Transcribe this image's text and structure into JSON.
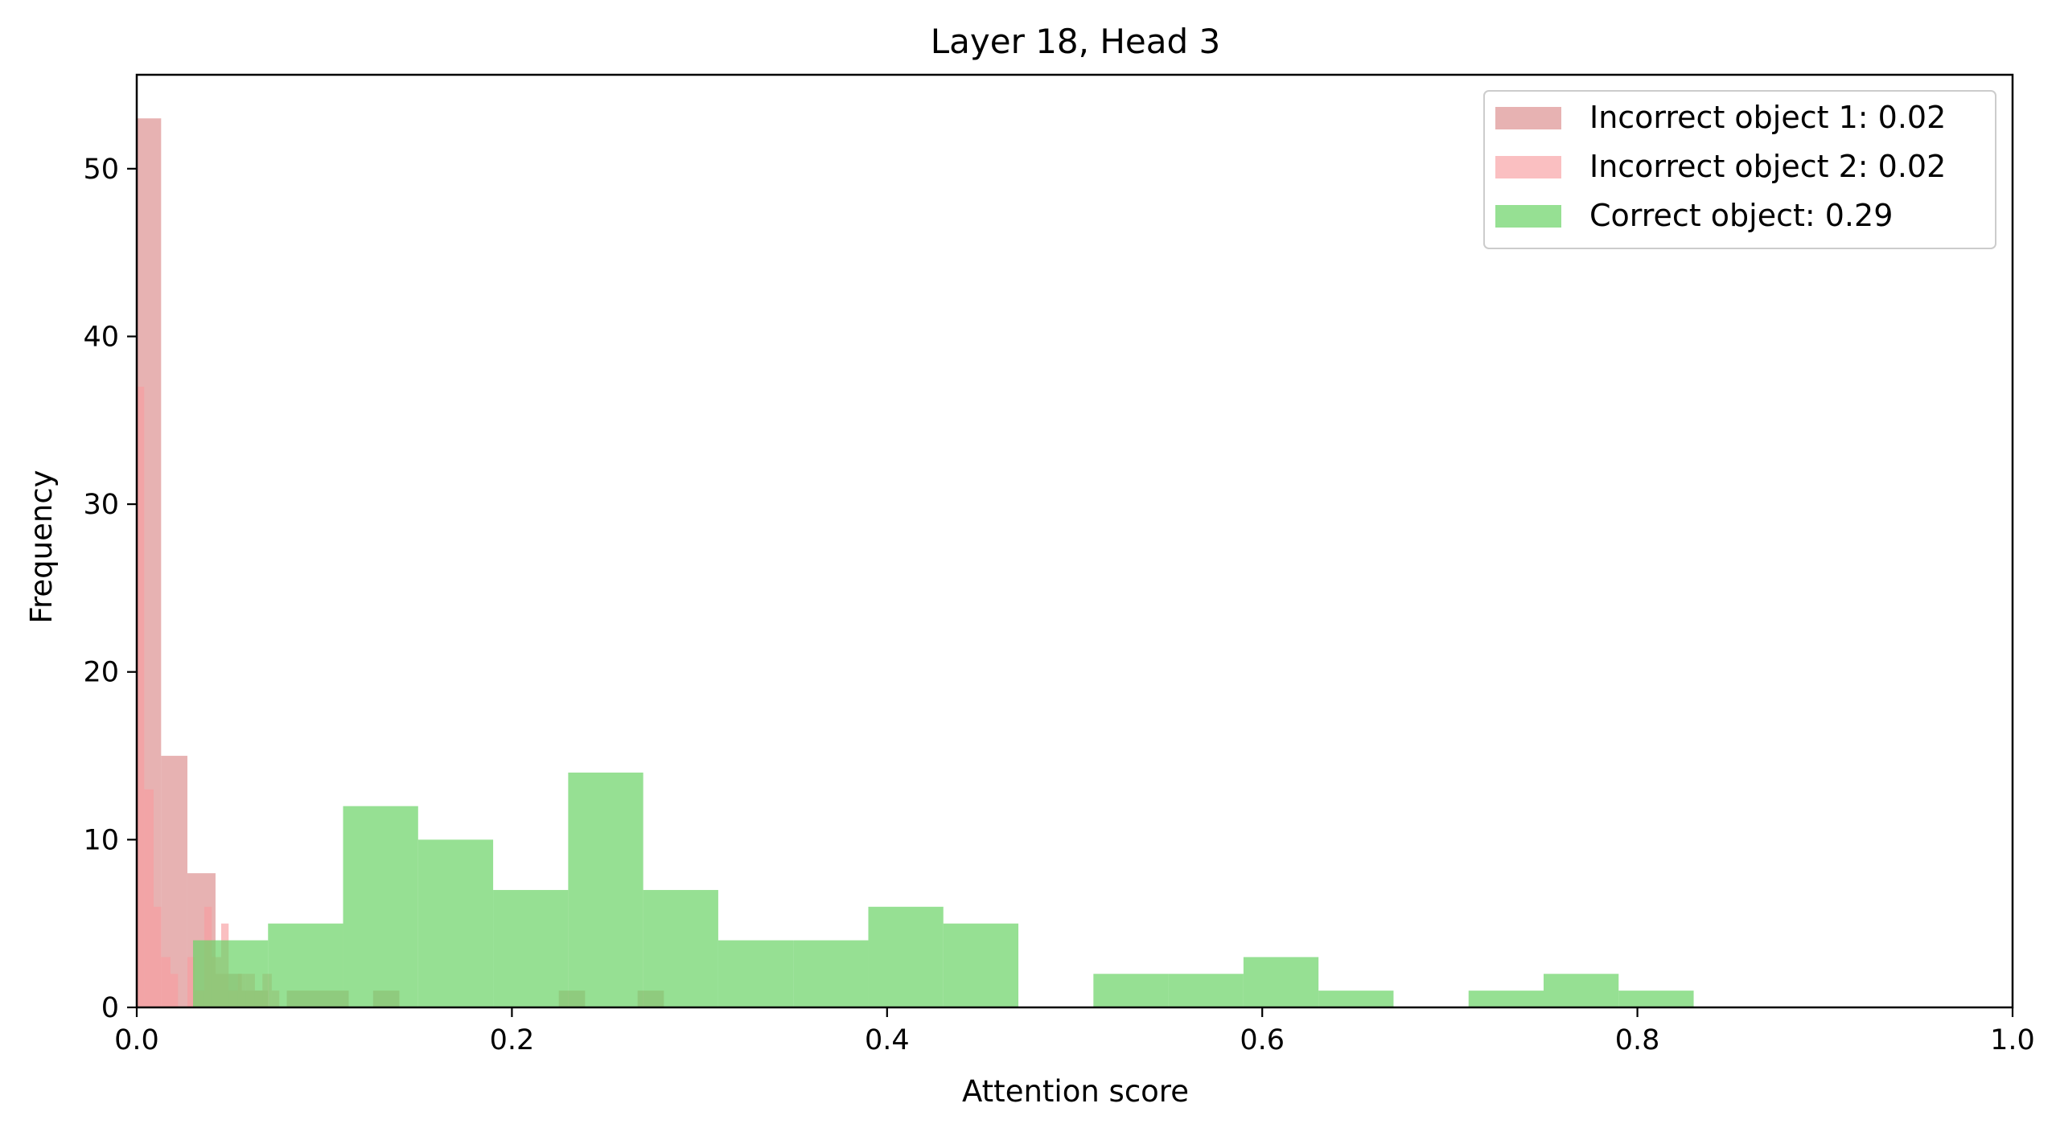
{
  "chart_data": {
    "type": "bar",
    "title": "Layer 18, Head 3",
    "xlabel": "Attention score",
    "ylabel": "Frequency",
    "xlim": [
      0.0,
      1.0
    ],
    "ylim": [
      0,
      55.6
    ],
    "x_ticks": [
      0.0,
      0.2,
      0.4,
      0.6,
      0.8,
      1.0
    ],
    "x_tick_labels": [
      "0.0",
      "0.2",
      "0.4",
      "0.6",
      "0.8",
      "1.0"
    ],
    "y_ticks": [
      0,
      10,
      20,
      30,
      40,
      50
    ],
    "y_tick_labels": [
      "0",
      "10",
      "20",
      "30",
      "40",
      "50"
    ],
    "grid": false,
    "legend_position": "top-right",
    "histogram": true,
    "series": [
      {
        "name": "Incorrect object 1: 0.02",
        "color": "#d98282",
        "opacity": 0.62,
        "bins": [
          {
            "x0": 0.0,
            "x1": 0.013,
            "count": 53
          },
          {
            "x0": 0.013,
            "x1": 0.027,
            "count": 15
          },
          {
            "x0": 0.027,
            "x1": 0.042,
            "count": 8
          },
          {
            "x0": 0.042,
            "x1": 0.056,
            "count": 2
          },
          {
            "x0": 0.056,
            "x1": 0.07,
            "count": 1
          },
          {
            "x0": 0.07,
            "x1": 0.08,
            "count": 0
          },
          {
            "x0": 0.08,
            "x1": 0.113,
            "count": 1
          },
          {
            "x0": 0.126,
            "x1": 0.14,
            "count": 1
          },
          {
            "x0": 0.225,
            "x1": 0.239,
            "count": 1
          },
          {
            "x0": 0.267,
            "x1": 0.281,
            "count": 1
          }
        ]
      },
      {
        "name": "Incorrect object 2: 0.02",
        "color": "#f89da0",
        "opacity": 0.65,
        "bins": [
          {
            "x0": 0.0,
            "x1": 0.004,
            "count": 37
          },
          {
            "x0": 0.004,
            "x1": 0.009,
            "count": 13
          },
          {
            "x0": 0.009,
            "x1": 0.013,
            "count": 6
          },
          {
            "x0": 0.013,
            "x1": 0.018,
            "count": 3
          },
          {
            "x0": 0.018,
            "x1": 0.022,
            "count": 2
          },
          {
            "x0": 0.022,
            "x1": 0.027,
            "count": 0
          },
          {
            "x0": 0.027,
            "x1": 0.031,
            "count": 3
          },
          {
            "x0": 0.031,
            "x1": 0.036,
            "count": 1
          },
          {
            "x0": 0.036,
            "x1": 0.04,
            "count": 6
          },
          {
            "x0": 0.04,
            "x1": 0.045,
            "count": 3
          },
          {
            "x0": 0.045,
            "x1": 0.049,
            "count": 5
          },
          {
            "x0": 0.049,
            "x1": 0.054,
            "count": 1
          },
          {
            "x0": 0.054,
            "x1": 0.058,
            "count": 2
          },
          {
            "x0": 0.058,
            "x1": 0.063,
            "count": 2
          },
          {
            "x0": 0.063,
            "x1": 0.067,
            "count": 1
          },
          {
            "x0": 0.067,
            "x1": 0.072,
            "count": 2
          },
          {
            "x0": 0.072,
            "x1": 0.076,
            "count": 1
          }
        ]
      },
      {
        "name": "Correct object: 0.29",
        "color": "#6ed46a",
        "opacity": 0.72,
        "bins": [
          {
            "x0": 0.03,
            "x1": 0.07,
            "count": 4
          },
          {
            "x0": 0.07,
            "x1": 0.11,
            "count": 5
          },
          {
            "x0": 0.11,
            "x1": 0.15,
            "count": 12
          },
          {
            "x0": 0.15,
            "x1": 0.19,
            "count": 10
          },
          {
            "x0": 0.19,
            "x1": 0.23,
            "count": 7
          },
          {
            "x0": 0.23,
            "x1": 0.27,
            "count": 14
          },
          {
            "x0": 0.27,
            "x1": 0.31,
            "count": 7
          },
          {
            "x0": 0.31,
            "x1": 0.35,
            "count": 4
          },
          {
            "x0": 0.35,
            "x1": 0.39,
            "count": 4
          },
          {
            "x0": 0.39,
            "x1": 0.43,
            "count": 6
          },
          {
            "x0": 0.43,
            "x1": 0.47,
            "count": 5
          },
          {
            "x0": 0.47,
            "x1": 0.51,
            "count": 0
          },
          {
            "x0": 0.51,
            "x1": 0.55,
            "count": 2
          },
          {
            "x0": 0.55,
            "x1": 0.59,
            "count": 2
          },
          {
            "x0": 0.59,
            "x1": 0.63,
            "count": 3
          },
          {
            "x0": 0.63,
            "x1": 0.67,
            "count": 1
          },
          {
            "x0": 0.67,
            "x1": 0.71,
            "count": 0
          },
          {
            "x0": 0.71,
            "x1": 0.75,
            "count": 1
          },
          {
            "x0": 0.75,
            "x1": 0.79,
            "count": 2
          },
          {
            "x0": 0.79,
            "x1": 0.83,
            "count": 1
          }
        ]
      }
    ]
  }
}
